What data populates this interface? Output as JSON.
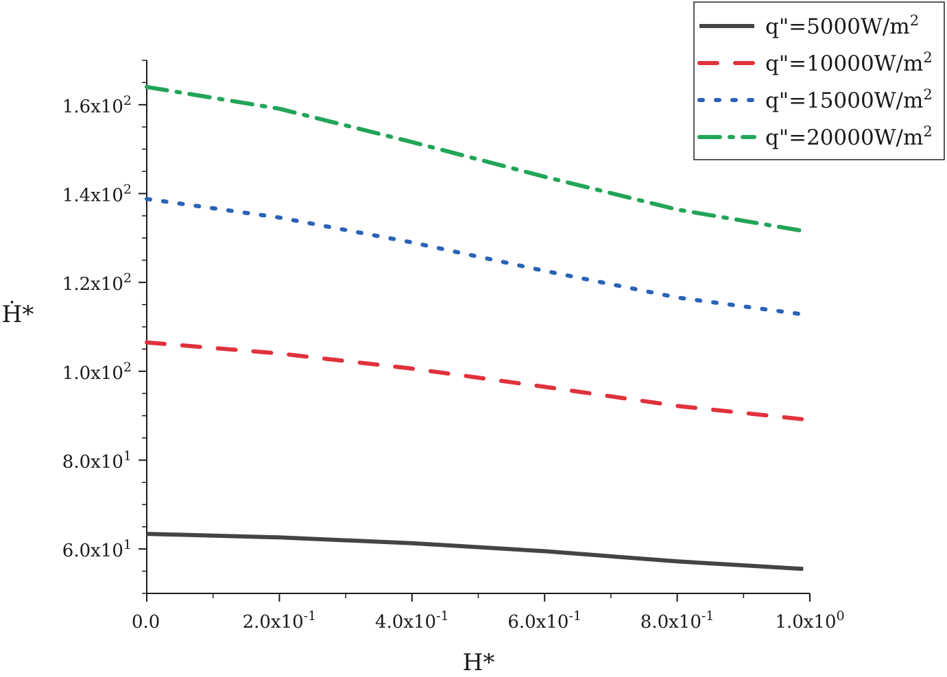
{
  "chart_data": {
    "type": "line",
    "title": "",
    "xlabel": "H*",
    "ylabel": "Ḣ*",
    "xlim": [
      0,
      1
    ],
    "ylim": [
      50,
      170
    ],
    "grid": false,
    "legend_position": "top-right",
    "x_ticks": [
      {
        "value": 0.0,
        "mantissa": "0.0",
        "exponent": ""
      },
      {
        "value": 0.2,
        "mantissa": "2.0x10",
        "exponent": "-1"
      },
      {
        "value": 0.4,
        "mantissa": "4.0x10",
        "exponent": "-1"
      },
      {
        "value": 0.6,
        "mantissa": "6.0x10",
        "exponent": "-1"
      },
      {
        "value": 0.8,
        "mantissa": "8.0x10",
        "exponent": "-1"
      },
      {
        "value": 1.0,
        "mantissa": "1.0x10",
        "exponent": "0"
      }
    ],
    "y_ticks": [
      {
        "value": 60,
        "mantissa": "6.0x10",
        "exponent": "1"
      },
      {
        "value": 80,
        "mantissa": "8.0x10",
        "exponent": "1"
      },
      {
        "value": 100,
        "mantissa": "1.0x10",
        "exponent": "2"
      },
      {
        "value": 120,
        "mantissa": "1.2x10",
        "exponent": "2"
      },
      {
        "value": 140,
        "mantissa": "1.4x10",
        "exponent": "2"
      },
      {
        "value": 160,
        "mantissa": "1.6x10",
        "exponent": "2"
      }
    ],
    "x": [
      0.0,
      0.2,
      0.4,
      0.6,
      0.8,
      0.99
    ],
    "series": [
      {
        "name": "q\"=5000W/m",
        "sup": "2",
        "color": "#444444",
        "dash": "solid",
        "values": [
          63.4,
          62.6,
          61.3,
          59.5,
          57.2,
          55.5
        ]
      },
      {
        "name": "q\"=10000W/m",
        "sup": "2",
        "color": "#e0323c",
        "dash": "dash",
        "values": [
          106.5,
          104.0,
          100.6,
          96.5,
          92.2,
          89.2
        ]
      },
      {
        "name": "q\"=15000W/m",
        "sup": "2",
        "color": "#2a62b8",
        "dash": "dot",
        "values": [
          138.8,
          134.6,
          129.0,
          122.6,
          116.6,
          112.8
        ]
      },
      {
        "name": "q\"=20000W/m",
        "sup": "2",
        "color": "#22a559",
        "dash": "dashdot",
        "values": [
          164.0,
          159.1,
          151.6,
          143.8,
          136.4,
          131.6
        ]
      }
    ]
  }
}
